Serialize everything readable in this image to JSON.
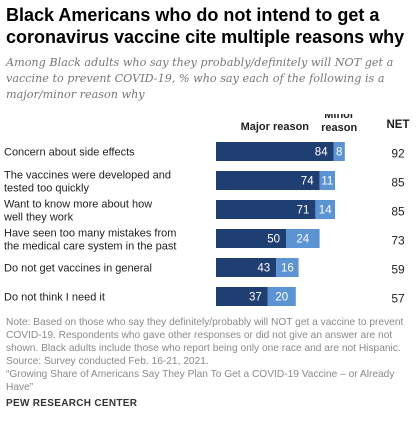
{
  "title": "Black Americans who do not intend to get a coronavirus vaccine cite multiple reasons why",
  "subtitle": "Among Black adults who say they probably/definitely will NOT get a vaccine to prevent COVID-19, % who say each of the following is a major/minor reason why",
  "note": "Note: Based on those who say they definitely/probably will NOT get a vaccine to prevent COVID-19. Respondents who gave other responses or did not give an answer are not shown. Black adults include those who report being only one race and are not Hispanic.\nSource: Survey conducted Feb. 16-21, 2021.\n“Growing Share of Americans Say They Plan To Get a COVID-19 Vaccine – or Already Have”",
  "source_name": "PEW RESEARCH CENTER",
  "colors": {
    "major": "#1f3f73",
    "minor": "#5c93d3"
  },
  "chart_data": {
    "type": "bar",
    "orientation": "horizontal",
    "stacked": true,
    "categories": [
      "Concern about side effects",
      "The vaccines were developed and tested too quickly",
      "Want to know more about how well they work",
      "Have seen too many mistakes from the medical care system in the past",
      "Do not get vaccines in general",
      "Do not think I need it"
    ],
    "series": [
      {
        "name": "Major reason",
        "values": [
          84,
          74,
          71,
          50,
          43,
          37
        ]
      },
      {
        "name": "Minor reason",
        "values": [
          8,
          11,
          14,
          24,
          16,
          20
        ]
      }
    ],
    "net_label": "NET",
    "net": [
      92,
      85,
      85,
      73,
      59,
      57
    ]
  }
}
